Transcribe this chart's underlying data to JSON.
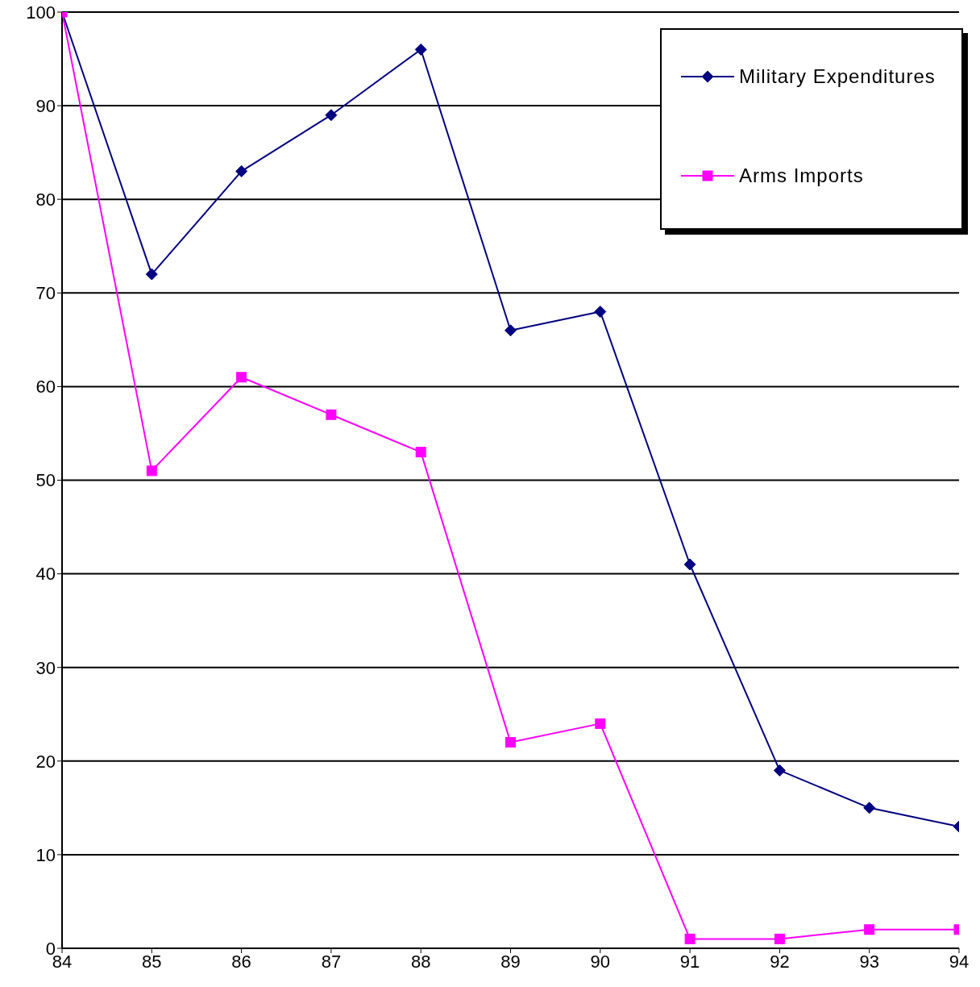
{
  "chart_data": {
    "type": "line",
    "x": [
      84,
      85,
      86,
      87,
      88,
      89,
      90,
      91,
      92,
      93,
      94
    ],
    "xlim": [
      84,
      94
    ],
    "xticks": [
      84,
      85,
      86,
      87,
      88,
      89,
      90,
      91,
      92,
      93,
      94
    ],
    "ylim": [
      0,
      100
    ],
    "yticks": [
      0,
      10,
      20,
      30,
      40,
      50,
      60,
      70,
      80,
      90,
      100
    ],
    "grid": "y",
    "legend": "top right",
    "line_style": "solid",
    "series": [
      {
        "name": "Military Expenditures",
        "color": "#000080",
        "marker": "diamond",
        "values": [
          100,
          72,
          83,
          89,
          96,
          66,
          68,
          41,
          19,
          15,
          13
        ]
      },
      {
        "name": "Arms Imports",
        "color": "#ff00ff",
        "marker": "square",
        "values": [
          100,
          51,
          61,
          57,
          53,
          22,
          24,
          1,
          1,
          2,
          2
        ]
      }
    ]
  }
}
